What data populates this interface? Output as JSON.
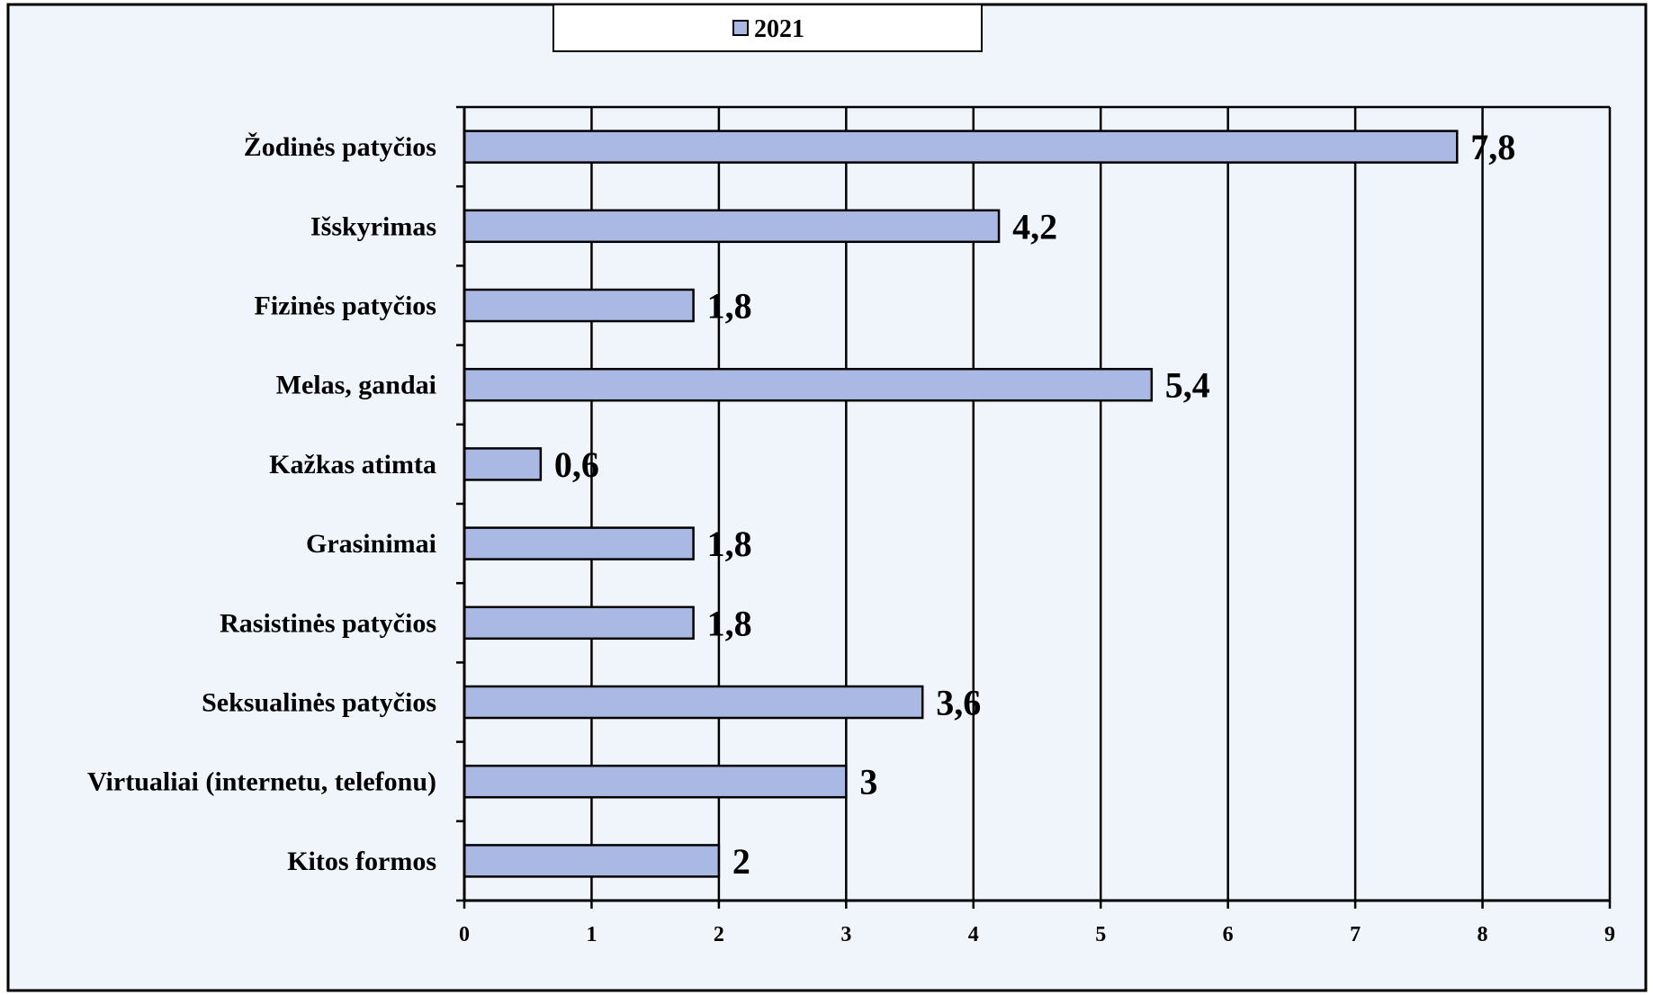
{
  "chart_data": {
    "type": "bar",
    "orientation": "horizontal",
    "categories": [
      "Žodinės patyčios",
      "Išskyrimas",
      "Fizinės patyčios",
      "Melas, gandai",
      "Kažkas atimta",
      "Grasinimai",
      "Rasistinės patyčios",
      "Seksualinės patyčios",
      "Virtualiai (internetu, telefonu)",
      "Kitos formos"
    ],
    "series": [
      {
        "name": "2021",
        "values": [
          7.8,
          4.2,
          1.8,
          5.4,
          0.6,
          1.8,
          1.8,
          3.6,
          3,
          2
        ],
        "labels": [
          "7,8",
          "4,2",
          "1,8",
          "5,4",
          "0,6",
          "1,8",
          "1,8",
          "3,6",
          "3",
          "2"
        ]
      }
    ],
    "xlim": [
      0,
      9
    ],
    "xticks": [
      "0",
      "1",
      "2",
      "3",
      "4",
      "5",
      "6",
      "7",
      "8",
      "9"
    ],
    "grid": "vertical",
    "legend": "top-center",
    "colors": {
      "background": "#f0f4fb",
      "bar_fill": "#aab8e4",
      "bar_stroke": "#000000",
      "frame": "#000000"
    }
  }
}
